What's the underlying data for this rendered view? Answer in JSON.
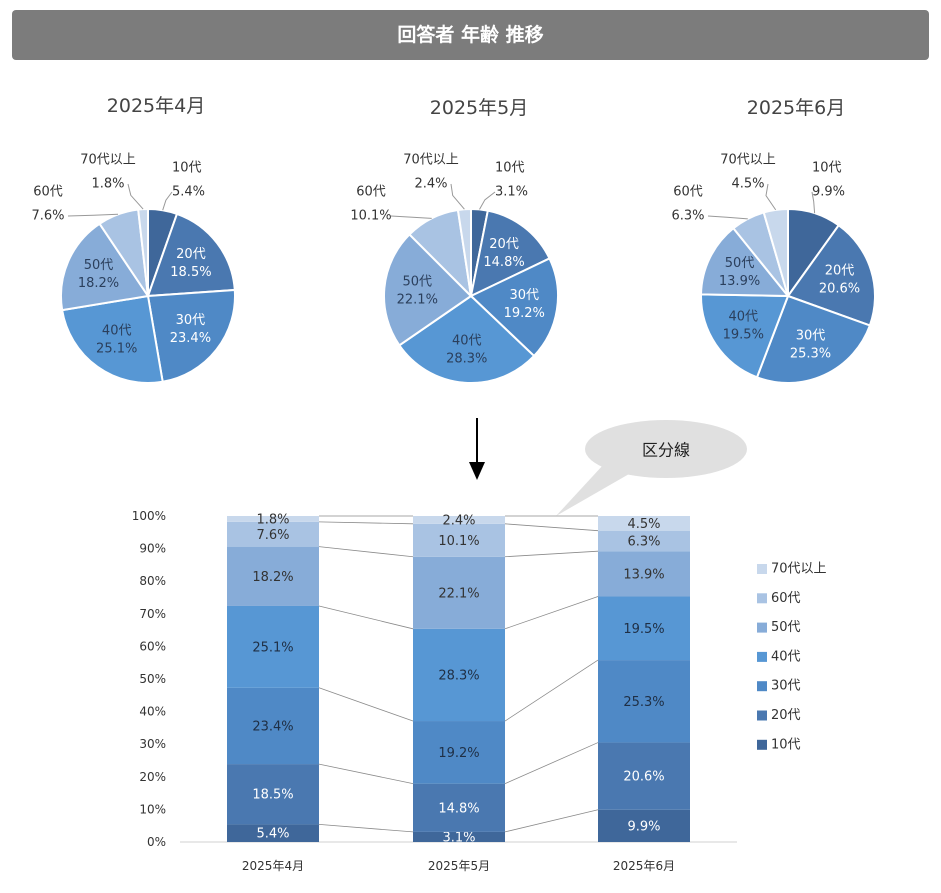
{
  "header": {
    "title": "回答者 年齢 推移"
  },
  "chart_data": {
    "type": "pie+stacked-bar",
    "categories": [
      "10代",
      "20代",
      "30代",
      "40代",
      "50代",
      "60代",
      "70代以上"
    ],
    "colors": [
      "#3f679a",
      "#4a78b0",
      "#4f89c6",
      "#5797d4",
      "#87acd8",
      "#a9c3e3",
      "#c8d8ec"
    ],
    "periods": [
      {
        "label": "2025年4月",
        "values": [
          5.4,
          18.5,
          23.4,
          25.1,
          18.2,
          7.6,
          1.8
        ]
      },
      {
        "label": "2025年5月",
        "values": [
          3.1,
          14.8,
          19.2,
          28.3,
          22.1,
          10.1,
          2.4
        ]
      },
      {
        "label": "2025年6月",
        "values": [
          9.9,
          20.6,
          25.3,
          19.5,
          13.9,
          6.3,
          4.5
        ]
      }
    ],
    "y_ticks": [
      "0%",
      "10%",
      "20%",
      "30%",
      "40%",
      "50%",
      "60%",
      "70%",
      "80%",
      "90%",
      "100%"
    ],
    "ylim": [
      0,
      100
    ],
    "legend_position": "right",
    "annotation": "区分線"
  }
}
